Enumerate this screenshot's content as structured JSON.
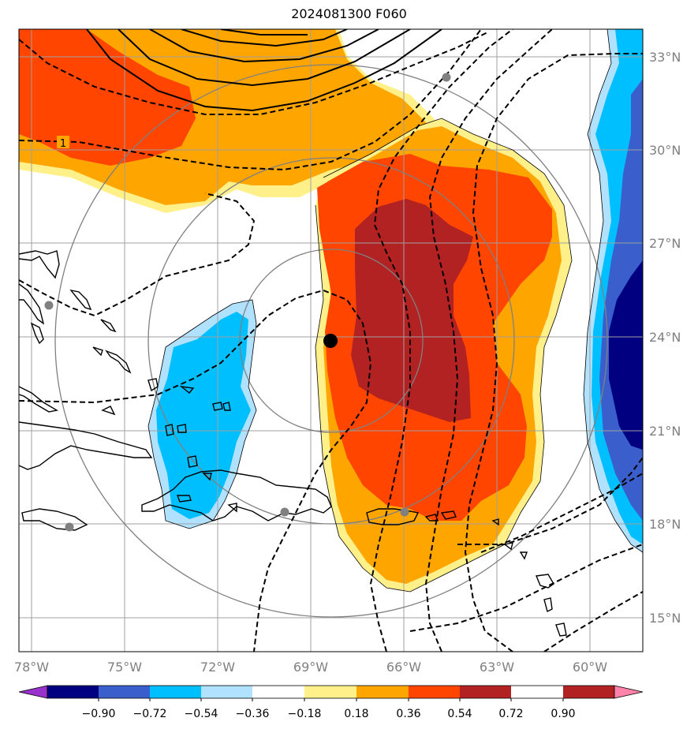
{
  "title": "2024081300 F060",
  "map": {
    "lon_ticks": [
      "78°W",
      "75°W",
      "72°W",
      "69°W",
      "66°W",
      "63°W",
      "60°W"
    ],
    "lat_ticks": [
      "33°N",
      "30°N",
      "27°N",
      "24°N",
      "21°N",
      "18°N",
      "15°N"
    ],
    "contour_label": "1",
    "center_marker": "storm-center"
  },
  "colorbar": {
    "ticks": [
      "−0.90",
      "−0.72",
      "−0.54",
      "−0.36",
      "−0.18",
      "0.18",
      "0.36",
      "0.54",
      "0.72",
      "0.90"
    ],
    "colors": [
      "#9932cc",
      "#000080",
      "#3a5fcd",
      "#00bfff",
      "#b0e2ff",
      "#ffffff",
      "#fff08a",
      "#ffa500",
      "#ff4500",
      "#b22222",
      "#ff82ab"
    ]
  }
}
